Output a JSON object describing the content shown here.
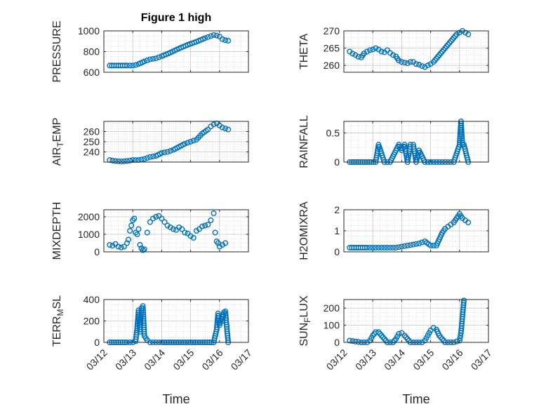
{
  "figure": {
    "title": "Figure 1 high"
  },
  "style": {
    "marker_color": "#0072bd",
    "grid_color": "#d0d0d0",
    "axis_color": "#262626"
  },
  "chart_data": [
    {
      "type": "scatter",
      "ylabel": "PRESSURE",
      "title": "Figure 1 high",
      "ylim": [
        600,
        1000
      ],
      "yticks": [
        600,
        800,
        1000
      ],
      "xlim": [
        "03/12",
        "03/17"
      ],
      "xticks": [],
      "xlabel": "",
      "grid": true,
      "dense": true,
      "x": [
        12.2,
        12.5,
        12.8,
        13.0,
        13.1,
        13.2,
        13.4,
        13.6,
        13.8,
        14.0,
        14.3,
        14.6,
        14.9,
        15.2,
        15.5,
        15.7,
        15.8,
        15.9,
        16.0,
        16.1,
        16.2,
        16.3
      ],
      "y": [
        665,
        665,
        665,
        665,
        670,
        680,
        705,
        725,
        735,
        755,
        790,
        830,
        865,
        895,
        930,
        950,
        960,
        955,
        945,
        920,
        910,
        905
      ]
    },
    {
      "type": "scatter",
      "ylabel": "THETA",
      "ylim": [
        258,
        270
      ],
      "yticks": [
        260,
        265,
        270
      ],
      "xlim": [
        "03/12",
        "03/17"
      ],
      "xticks": [],
      "xlabel": "",
      "grid": true,
      "dense": true,
      "x": [
        12.2,
        12.3,
        12.4,
        12.5,
        12.6,
        12.7,
        12.8,
        12.9,
        13.0,
        13.1,
        13.2,
        13.3,
        13.4,
        13.5,
        13.6,
        13.7,
        13.8,
        13.9,
        14.0,
        14.1,
        14.2,
        14.3,
        14.4,
        14.5,
        14.6,
        14.7,
        14.8,
        14.9,
        15.0,
        15.1,
        15.2,
        15.3,
        15.4,
        15.5,
        15.6,
        15.7,
        15.8,
        15.9,
        16.0,
        16.1,
        16.2,
        16.3
      ],
      "y": [
        264.0,
        263.4,
        263.0,
        262.5,
        262.3,
        263.5,
        264.0,
        264.4,
        264.6,
        265.0,
        264.6,
        264.0,
        263.8,
        264.4,
        263.6,
        263.0,
        262.6,
        261.4,
        261.0,
        260.8,
        260.6,
        261.0,
        261.0,
        260.4,
        260.2,
        259.8,
        259.5,
        260.0,
        260.4,
        261.0,
        262.0,
        263.0,
        264.0,
        265.0,
        266.0,
        267.0,
        268.0,
        269.0,
        269.5,
        270.0,
        269.5,
        269.0
      ]
    },
    {
      "type": "scatter",
      "ylabel": "AIR_TEMP",
      "ylim": [
        230,
        270
      ],
      "yticks": [
        240,
        250,
        260
      ],
      "xlim": [
        "03/12",
        "03/17"
      ],
      "xticks": [],
      "xlabel": "",
      "grid": true,
      "dense": true,
      "x": [
        12.2,
        12.4,
        12.6,
        12.8,
        13.0,
        13.2,
        13.4,
        13.6,
        13.8,
        14.0,
        14.2,
        14.4,
        14.6,
        14.8,
        15.0,
        15.2,
        15.4,
        15.6,
        15.7,
        15.8,
        15.9,
        16.0,
        16.1,
        16.2,
        16.3
      ],
      "y": [
        232.0,
        231.0,
        230.5,
        231.0,
        232.0,
        232.0,
        233.0,
        235.0,
        236.0,
        239.0,
        240.0,
        242.0,
        245.0,
        248.0,
        250.0,
        252.0,
        258.0,
        262.0,
        265.0,
        267.0,
        268.0,
        266.0,
        264.0,
        263.0,
        262.0
      ]
    },
    {
      "type": "scatter",
      "ylabel": "RAINFALL",
      "ylim": [
        0,
        0.7
      ],
      "yticks": [
        0,
        0.5
      ],
      "xlim": [
        "03/12",
        "03/17"
      ],
      "xticks": [],
      "xlabel": "",
      "grid": true,
      "dense": true,
      "x": [
        12.2,
        12.5,
        12.8,
        13.1,
        13.2,
        13.4,
        13.6,
        13.8,
        13.9,
        14.0,
        14.1,
        14.2,
        14.3,
        14.4,
        14.5,
        14.6,
        14.8,
        15.0,
        15.2,
        15.4,
        15.6,
        15.8,
        16.0,
        16.05,
        16.1,
        16.15,
        16.3
      ],
      "y": [
        0,
        0,
        0,
        0,
        0.3,
        0,
        0,
        0.2,
        0.3,
        0.2,
        0.3,
        0,
        0.3,
        0.3,
        0,
        0.2,
        0,
        0,
        0,
        0,
        0,
        0,
        0.3,
        0.7,
        0.3,
        0.3,
        0
      ]
    },
    {
      "type": "scatter",
      "ylabel": "MIXDEPTH",
      "ylim": [
        0,
        2400
      ],
      "yticks": [
        0,
        1000,
        2000
      ],
      "xlim": [
        "03/12",
        "03/17"
      ],
      "xticks": [],
      "xlabel": "",
      "grid": true,
      "dense": false,
      "x": [
        12.2,
        12.3,
        12.4,
        12.5,
        12.6,
        12.7,
        12.8,
        12.85,
        12.9,
        12.95,
        13.0,
        13.05,
        13.1,
        13.15,
        13.2,
        13.25,
        13.3,
        13.35,
        13.4,
        13.5,
        13.6,
        13.7,
        13.8,
        13.9,
        14.0,
        14.1,
        14.2,
        14.3,
        14.4,
        14.5,
        14.6,
        14.7,
        14.8,
        14.9,
        15.0,
        15.1,
        15.2,
        15.3,
        15.4,
        15.5,
        15.6,
        15.7,
        15.8,
        15.85,
        15.9,
        15.95,
        16.0,
        16.1,
        16.2
      ],
      "y": [
        400,
        350,
        450,
        300,
        250,
        300,
        500,
        700,
        1200,
        1500,
        1800,
        1900,
        1100,
        1000,
        1300,
        400,
        200,
        100,
        150,
        1100,
        1700,
        1900,
        2000,
        2050,
        1900,
        1700,
        1500,
        1400,
        1300,
        1250,
        1400,
        1300,
        1100,
        1050,
        900,
        800,
        1200,
        1300,
        1450,
        1500,
        1550,
        1800,
        2200,
        1100,
        600,
        500,
        300,
        400,
        500
      ]
    },
    {
      "type": "scatter",
      "ylabel": "H2OMIXRA",
      "ylim": [
        0,
        2
      ],
      "yticks": [
        0,
        1,
        2
      ],
      "xlim": [
        "03/12",
        "03/17"
      ],
      "xticks": [],
      "xlabel": "",
      "grid": true,
      "dense": true,
      "x": [
        12.2,
        12.5,
        12.8,
        13.0,
        13.2,
        13.4,
        13.6,
        13.8,
        14.0,
        14.2,
        14.4,
        14.6,
        14.8,
        15.0,
        15.2,
        15.3,
        15.4,
        15.5,
        15.6,
        15.7,
        15.8,
        15.9,
        16.0,
        16.1,
        16.2,
        16.3
      ],
      "y": [
        0.2,
        0.2,
        0.2,
        0.2,
        0.2,
        0.2,
        0.2,
        0.2,
        0.25,
        0.3,
        0.35,
        0.4,
        0.5,
        0.3,
        0.3,
        0.6,
        0.9,
        1.1,
        1.2,
        1.3,
        1.4,
        1.6,
        1.8,
        1.6,
        1.5,
        1.4
      ]
    },
    {
      "type": "scatter",
      "ylabel": "TERR_MSL",
      "ylim": [
        0,
        400
      ],
      "yticks": [
        0,
        200,
        400
      ],
      "xlim": [
        "03/12",
        "03/17"
      ],
      "xticks": [
        "03/12",
        "03/13",
        "03/14",
        "03/15",
        "03/16",
        "03/17"
      ],
      "xlabel": "Time",
      "grid": true,
      "dense": true,
      "x": [
        12.2,
        12.5,
        12.8,
        13.0,
        13.1,
        13.15,
        13.2,
        13.25,
        13.3,
        13.35,
        13.4,
        13.5,
        13.6,
        13.8,
        14.0,
        14.5,
        15.0,
        15.5,
        15.8,
        15.9,
        15.95,
        16.0,
        16.05,
        16.1,
        16.15,
        16.2,
        16.3
      ],
      "y": [
        0,
        0,
        0,
        0,
        10,
        130,
        300,
        100,
        320,
        340,
        60,
        20,
        0,
        0,
        0,
        0,
        0,
        0,
        0,
        120,
        270,
        160,
        220,
        200,
        280,
        290,
        0
      ]
    },
    {
      "type": "scatter",
      "ylabel": "SUN_FLUX",
      "ylim": [
        0,
        250
      ],
      "yticks": [
        0,
        100,
        200
      ],
      "xlim": [
        "03/12",
        "03/17"
      ],
      "xticks": [
        "03/12",
        "03/13",
        "03/14",
        "03/15",
        "03/16",
        "03/17"
      ],
      "xlabel": "Time",
      "grid": true,
      "dense": true,
      "x": [
        12.2,
        12.4,
        12.6,
        12.8,
        12.9,
        13.0,
        13.1,
        13.2,
        13.3,
        13.5,
        13.7,
        13.8,
        13.9,
        14.0,
        14.1,
        14.3,
        14.5,
        14.7,
        14.8,
        14.9,
        15.0,
        15.1,
        15.2,
        15.3,
        15.5,
        15.7,
        15.8,
        15.9,
        16.0,
        16.05,
        16.1,
        16.15
      ],
      "y": [
        10,
        5,
        0,
        0,
        10,
        40,
        60,
        60,
        40,
        0,
        0,
        20,
        50,
        55,
        40,
        0,
        0,
        0,
        10,
        40,
        70,
        85,
        75,
        40,
        0,
        0,
        0,
        5,
        10,
        55,
        150,
        245
      ]
    }
  ]
}
